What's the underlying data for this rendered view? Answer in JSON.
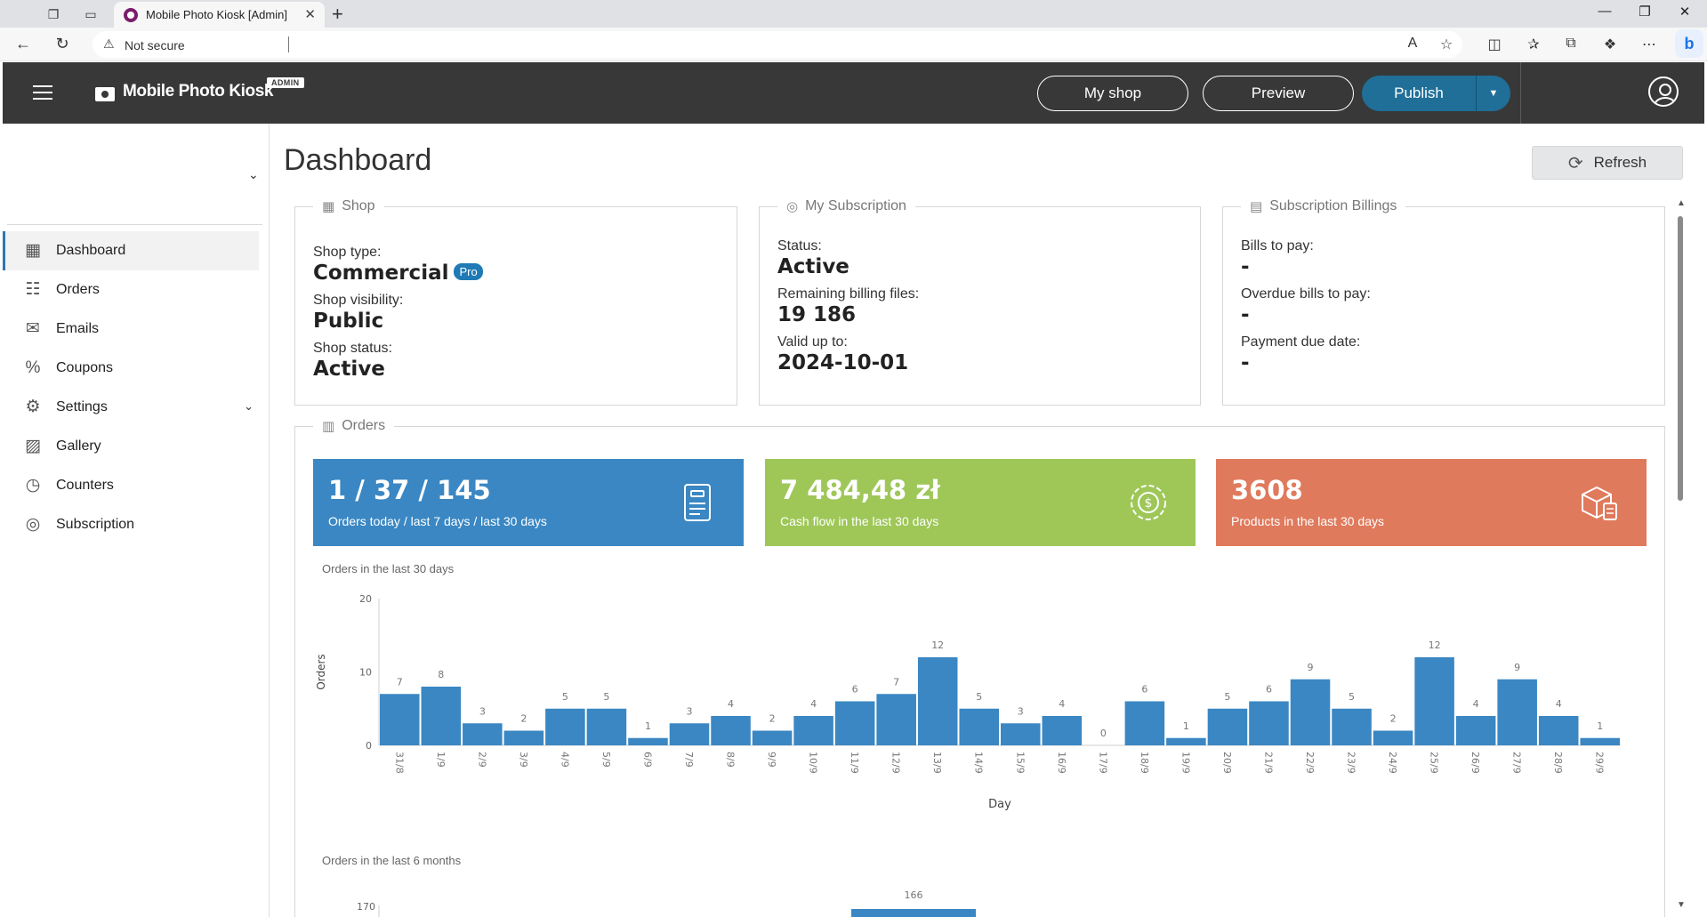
{
  "browser": {
    "tab_title": "Mobile Photo Kiosk [Admin]",
    "url_security": "Not secure",
    "url": ""
  },
  "header": {
    "brand": "Mobile Photo Kiosk",
    "badge": "ADMIN",
    "my_shop": "My shop",
    "preview": "Preview",
    "publish": "Publish"
  },
  "sidebar": {
    "items": [
      {
        "label": "Dashboard",
        "icon": "dashboard-icon"
      },
      {
        "label": "Orders",
        "icon": "orders-icon"
      },
      {
        "label": "Emails",
        "icon": "emails-icon"
      },
      {
        "label": "Coupons",
        "icon": "coupons-icon"
      },
      {
        "label": "Settings",
        "icon": "settings-icon"
      },
      {
        "label": "Gallery",
        "icon": "gallery-icon"
      },
      {
        "label": "Counters",
        "icon": "counters-icon"
      },
      {
        "label": "Subscription",
        "icon": "subscription-icon"
      }
    ]
  },
  "page": {
    "title": "Dashboard",
    "refresh": "Refresh"
  },
  "shop": {
    "legend": "Shop",
    "type_label": "Shop type:",
    "type_value": "Commercial",
    "type_badge": "Pro",
    "visibility_label": "Shop visibility:",
    "visibility_value": "Public",
    "status_label": "Shop status:",
    "status_value": "Active"
  },
  "subscription": {
    "legend": "My Subscription",
    "status_label": "Status:",
    "status_value": "Active",
    "files_label": "Remaining billing files:",
    "files_value": "19 186",
    "valid_label": "Valid up to:",
    "valid_value": "2024-10-01"
  },
  "billings": {
    "legend": "Subscription Billings",
    "bills_label": "Bills to pay:",
    "bills_value": "-",
    "overdue_label": "Overdue bills to pay:",
    "overdue_value": "-",
    "due_label": "Payment due date:",
    "due_value": "-"
  },
  "orders": {
    "legend": "Orders",
    "cards": [
      {
        "value": "1 / 37 / 145",
        "label": "Orders today / last 7 days / last 30 days",
        "color": "#3a87c3"
      },
      {
        "value": "7 484,48 zł",
        "label": "Cash flow in the last 30 days",
        "color": "#9ec758"
      },
      {
        "value": "3608",
        "label": "Products in the last 30 days",
        "color": "#e07a5c"
      }
    ],
    "chart30_title": "Orders in the last 30 days",
    "chart6m_title": "Orders in the last 6 months"
  },
  "chart_data": [
    {
      "type": "bar",
      "title": "Orders in the last 30 days",
      "xlabel": "Day",
      "ylabel": "Orders",
      "ylim": [
        0,
        20
      ],
      "yticks": [
        0,
        10,
        20
      ],
      "color": "#3a87c3",
      "categories": [
        "31/8",
        "1/9",
        "2/9",
        "3/9",
        "4/9",
        "5/9",
        "6/9",
        "7/9",
        "8/9",
        "9/9",
        "10/9",
        "11/9",
        "12/9",
        "13/9",
        "14/9",
        "15/9",
        "16/9",
        "17/9",
        "18/9",
        "19/9",
        "20/9",
        "21/9",
        "22/9",
        "23/9",
        "24/9",
        "25/9",
        "26/9",
        "27/9",
        "28/9",
        "29/9"
      ],
      "values": [
        7,
        8,
        3,
        2,
        5,
        5,
        1,
        3,
        4,
        2,
        4,
        6,
        7,
        12,
        5,
        3,
        4,
        0,
        6,
        1,
        5,
        6,
        9,
        5,
        2,
        12,
        4,
        9,
        4,
        1
      ]
    },
    {
      "type": "bar",
      "title": "Orders in the last 6 months",
      "yticks": [
        170
      ],
      "visible_labels": [
        166
      ],
      "color": "#3a87c3"
    }
  ]
}
